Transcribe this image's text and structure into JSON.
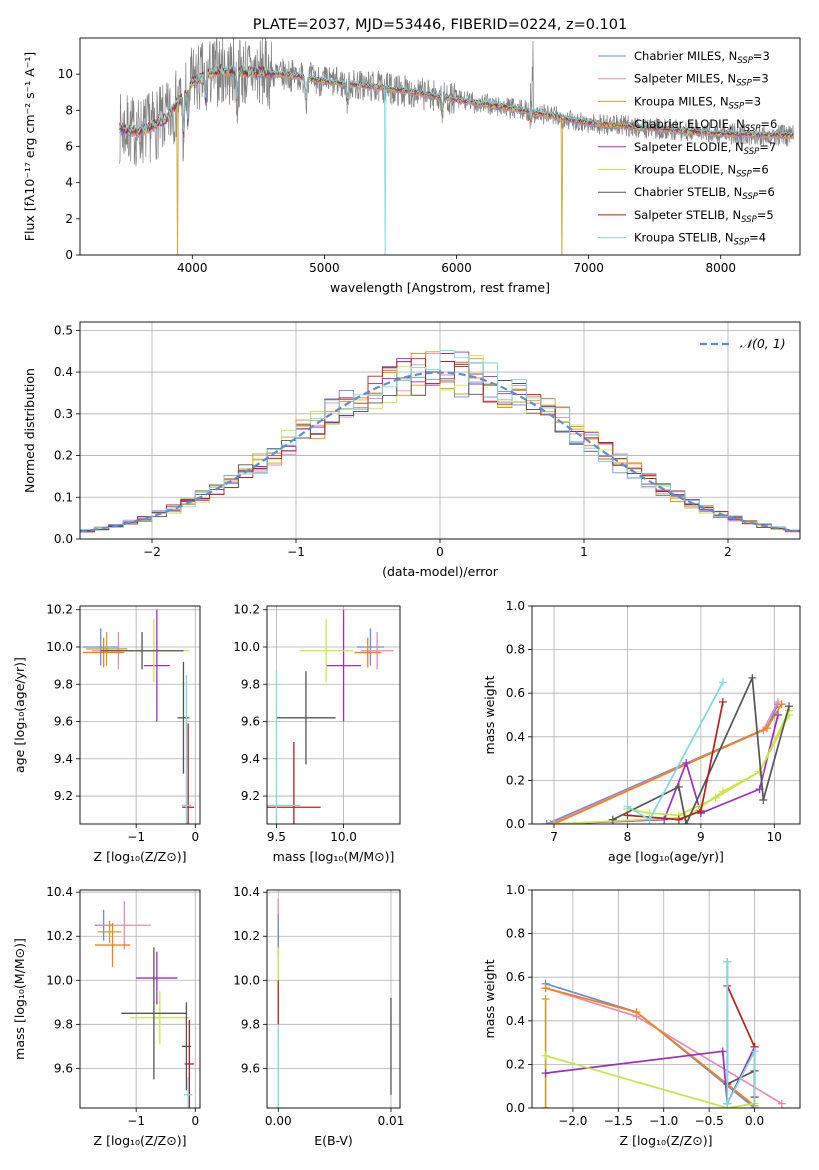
{
  "colors": {
    "chabrier_miles": "#6b8ed6",
    "salpeter_miles": "#e58bb8",
    "kroupa_miles": "#c9a227",
    "chabrier_elodie": "#ff7f0e",
    "salpeter_elodie": "#9b30c0",
    "kroupa_elodie": "#c8e64a",
    "chabrier_stelib": "#555555",
    "salpeter_stelib": "#b22222",
    "kroupa_stelib": "#80d8e0",
    "data": "#808080",
    "gaussian": "#5b8ed6",
    "grid": "#b0b0b0"
  },
  "chart_data": [
    {
      "id": "spectrum",
      "type": "line",
      "title": "PLATE=2037, MJD=53446, FIBERID=0224, z=0.101",
      "xlabel": "wavelength [Angstrom, rest frame]",
      "ylabel": "Flux [fλ10⁻¹⁷ erg cm⁻² s⁻¹ A⁻¹]",
      "xlim": [
        3150,
        8600
      ],
      "ylim": [
        0,
        12
      ],
      "xticks": [
        4000,
        5000,
        6000,
        7000,
        8000
      ],
      "yticks": [
        0,
        2,
        4,
        6,
        8,
        10
      ],
      "legend_position": "top-right",
      "series": [
        {
          "name": "Chabrier MILES, N_SSP=3",
          "sub": "SSP",
          "base": "Chabrier MILES, N",
          "num": "=3",
          "color_key": "chabrier_miles"
        },
        {
          "name": "Salpeter MILES, N_SSP=3",
          "sub": "SSP",
          "base": "Salpeter MILES, N",
          "num": "=3",
          "color_key": "salpeter_miles"
        },
        {
          "name": "Kroupa MILES, N_SSP=3",
          "sub": "SSP",
          "base": "Kroupa MILES, N",
          "num": "=3",
          "color_key": "kroupa_miles"
        },
        {
          "name": "Chabrier ELODIE, N_SSP=6",
          "sub": "SSP",
          "base": "Chabrier ELODIE, N",
          "num": "=6",
          "color_key": "chabrier_elodie"
        },
        {
          "name": "Salpeter ELODIE, N_SSP=7",
          "sub": "SSP",
          "base": "Salpeter ELODIE, N",
          "num": "=7",
          "color_key": "salpeter_elodie"
        },
        {
          "name": "Kroupa ELODIE, N_SSP=6",
          "sub": "SSP",
          "base": "Kroupa ELODIE, N",
          "num": "=6",
          "color_key": "kroupa_elodie"
        },
        {
          "name": "Chabrier STELIB, N_SSP=6",
          "sub": "SSP",
          "base": "Chabrier STELIB, N",
          "num": "=6",
          "color_key": "chabrier_stelib"
        },
        {
          "name": "Salpeter STELIB, N_SSP=5",
          "sub": "SSP",
          "base": "Salpeter STELIB, N",
          "num": "=5",
          "color_key": "salpeter_stelib"
        },
        {
          "name": "Kroupa STELIB, N_SSP=4",
          "sub": "SSP",
          "base": "Kroupa STELIB, N",
          "num": "=4",
          "color_key": "kroupa_stelib"
        }
      ],
      "continuum_points": [
        [
          3450,
          7.0
        ],
        [
          3600,
          6.8
        ],
        [
          3800,
          7.5
        ],
        [
          3950,
          9.0
        ],
        [
          4000,
          9.6
        ],
        [
          4200,
          10.2
        ],
        [
          4500,
          10.1
        ],
        [
          4800,
          9.9
        ],
        [
          5000,
          9.6
        ],
        [
          5500,
          9.2
        ],
        [
          6000,
          8.6
        ],
        [
          6500,
          8.0
        ],
        [
          7000,
          7.3
        ],
        [
          7500,
          7.0
        ],
        [
          8000,
          6.7
        ],
        [
          8500,
          6.6
        ]
      ]
    },
    {
      "id": "residuals",
      "type": "step",
      "xlabel": "(data-model)/error",
      "ylabel": "Normed distribution",
      "xlim": [
        -2.5,
        2.5
      ],
      "ylim": [
        0,
        0.52
      ],
      "xticks": [
        -2,
        -1,
        0,
        1,
        2
      ],
      "xtick_labels": [
        "−2",
        "−1",
        "0",
        "1",
        "2"
      ],
      "yticks": [
        0.0,
        0.1,
        0.2,
        0.3,
        0.4,
        0.5
      ],
      "ytick_labels": [
        "0.0",
        "0.1",
        "0.2",
        "0.3",
        "0.4",
        "0.5"
      ],
      "bin_width": 0.1,
      "reference": {
        "name": "N(0, 1)",
        "label": "𝒩(0, 1)",
        "mean": 0,
        "sigma": 1
      },
      "legend_position": "top-right"
    },
    {
      "id": "age-vs-Z",
      "type": "errorbar",
      "xlabel": "Z [log₁₀(Z/Z⊙)]",
      "ylabel": "age  [log₁₀(age/yr)]",
      "xlim": [
        -1.95,
        0.08
      ],
      "ylim": [
        9.05,
        10.22
      ],
      "xticks": [
        -1,
        0
      ],
      "xtick_labels": [
        "−1",
        "0"
      ],
      "yticks": [
        9.2,
        9.4,
        9.6,
        9.8,
        10.0,
        10.2
      ],
      "ytick_labels": [
        "9.2",
        "9.4",
        "9.6",
        "9.8",
        "10.0",
        "10.2"
      ],
      "points": [
        {
          "c": "chabrier_miles",
          "x": -1.6,
          "xe": 0.3,
          "y": 10.0,
          "ye": 0.1
        },
        {
          "c": "salpeter_miles",
          "x": -1.3,
          "xe": 0.45,
          "y": 9.98,
          "ye": 0.1
        },
        {
          "c": "kroupa_miles",
          "x": -1.5,
          "xe": 0.35,
          "y": 9.99,
          "ye": 0.09
        },
        {
          "c": "chabrier_elodie",
          "x": -1.55,
          "xe": 0.35,
          "y": 9.97,
          "ye": 0.08
        },
        {
          "c": "salpeter_elodie",
          "x": -0.65,
          "xe": 0.22,
          "y": 9.9,
          "ye": 0.3
        },
        {
          "c": "kroupa_elodie",
          "x": -0.7,
          "xe": 0.6,
          "y": 9.98,
          "ye": 0.17
        },
        {
          "c": "chabrier_stelib",
          "x": -0.9,
          "xe": 0.7,
          "y": 9.98,
          "ye": 0.1
        },
        {
          "c": "chabrier_stelib",
          "x": -0.2,
          "xe": 0.1,
          "y": 9.62,
          "ye": 0.3
        },
        {
          "c": "salpeter_stelib",
          "x": -0.12,
          "xe": 0.1,
          "y": 9.14,
          "ye": 0.45
        },
        {
          "c": "kroupa_stelib",
          "x": -0.15,
          "xe": 0.08,
          "y": 9.15,
          "ye": 0.7
        }
      ]
    },
    {
      "id": "age-vs-mass",
      "type": "errorbar",
      "xlabel": "mass [log₁₀(M/M⊙)]",
      "ylabel": "",
      "xlim": [
        9.43,
        10.42
      ],
      "ylim": [
        9.05,
        10.22
      ],
      "xticks": [
        9.5,
        10.0
      ],
      "xtick_labels": [
        "9.5",
        "10.0"
      ],
      "yticks": [
        9.2,
        9.4,
        9.6,
        9.8,
        10.0,
        10.2
      ],
      "ytick_labels": [
        "9.2",
        "9.4",
        "9.6",
        "9.8",
        "10.0",
        "10.2"
      ],
      "points": [
        {
          "c": "chabrier_miles",
          "x": 10.2,
          "xe": 0.1,
          "y": 10.0,
          "ye": 0.1
        },
        {
          "c": "salpeter_miles",
          "x": 10.25,
          "xe": 0.12,
          "y": 9.98,
          "ye": 0.1
        },
        {
          "c": "chabrier_elodie",
          "x": 10.18,
          "xe": 0.1,
          "y": 9.97,
          "ye": 0.08
        },
        {
          "c": "salpeter_elodie",
          "x": 10.0,
          "xe": 0.13,
          "y": 9.9,
          "ye": 0.3
        },
        {
          "c": "kroupa_elodie",
          "x": 9.87,
          "xe": 0.2,
          "y": 9.98,
          "ye": 0.17
        },
        {
          "c": "chabrier_stelib",
          "x": 9.72,
          "xe": 0.22,
          "y": 9.62,
          "ye": 0.25
        },
        {
          "c": "salpeter_stelib",
          "x": 9.63,
          "xe": 0.2,
          "y": 9.14,
          "ye": 0.35
        },
        {
          "c": "kroupa_stelib",
          "x": 9.5,
          "xe": 0.18,
          "y": 9.15,
          "ye": 0.72
        }
      ]
    },
    {
      "id": "massweight-vs-age",
      "type": "line",
      "xlabel": "age  [log₁₀(age/yr)]",
      "ylabel": "mass weight",
      "xlim": [
        6.7,
        10.35
      ],
      "ylim": [
        0,
        1.0
      ],
      "xticks": [
        7,
        8,
        9,
        10
      ],
      "xtick_labels": [
        "7",
        "8",
        "9",
        "10"
      ],
      "yticks": [
        0.0,
        0.2,
        0.4,
        0.6,
        0.8,
        1.0
      ],
      "ytick_labels": [
        "0.0",
        "0.2",
        "0.4",
        "0.6",
        "0.8",
        "1.0"
      ],
      "series": [
        {
          "c": "chabrier_miles",
          "x": [
            6.9,
            9.9,
            10.05
          ],
          "y": [
            0.0,
            0.44,
            0.55
          ]
        },
        {
          "c": "salpeter_miles",
          "x": [
            6.95,
            9.85,
            10.05
          ],
          "y": [
            0.0,
            0.43,
            0.56
          ]
        },
        {
          "c": "chabrier_elodie",
          "x": [
            7.0,
            9.9,
            10.1
          ],
          "y": [
            0.0,
            0.44,
            0.55
          ]
        },
        {
          "c": "salpeter_elodie",
          "x": [
            7.0,
            8.5,
            8.8,
            9.0,
            9.8,
            10.05
          ],
          "y": [
            0.0,
            0.02,
            0.28,
            0.05,
            0.16,
            0.5
          ]
        },
        {
          "c": "kroupa_elodie",
          "x": [
            7.0,
            8.8,
            9.3,
            9.8,
            10.2
          ],
          "y": [
            0.0,
            0.03,
            0.15,
            0.24,
            0.52
          ]
        },
        {
          "c": "kroupa_elodie",
          "x": [
            8.0,
            8.3,
            8.7,
            9.2,
            9.8,
            10.2
          ],
          "y": [
            0.07,
            0.05,
            0.04,
            0.12,
            0.24,
            0.5
          ]
        },
        {
          "c": "chabrier_stelib",
          "x": [
            7.8,
            8.7,
            8.8,
            9.7,
            9.85,
            10.2
          ],
          "y": [
            0.02,
            0.17,
            0.0,
            0.67,
            0.11,
            0.54
          ]
        },
        {
          "c": "salpeter_stelib",
          "x": [
            8.0,
            8.7,
            9.0,
            9.3
          ],
          "y": [
            0.04,
            0.02,
            0.06,
            0.56
          ]
        },
        {
          "c": "kroupa_stelib",
          "x": [
            8.0,
            8.3,
            9.3
          ],
          "y": [
            0.08,
            0.02,
            0.65
          ]
        }
      ]
    },
    {
      "id": "mass-vs-Z",
      "type": "errorbar",
      "xlabel": "Z [log₁₀(Z/Z⊙)]",
      "ylabel": "mass [log₁₀(M/M⊙)]",
      "xlim": [
        -1.95,
        0.08
      ],
      "ylim": [
        9.42,
        10.41
      ],
      "xticks": [
        -1,
        0
      ],
      "xtick_labels": [
        "−1",
        "0"
      ],
      "yticks": [
        9.6,
        9.8,
        10.0,
        10.2,
        10.4
      ],
      "ytick_labels": [
        "9.6",
        "9.8",
        "10.0",
        "10.2",
        "10.4"
      ],
      "points": [
        {
          "c": "chabrier_miles",
          "x": -1.55,
          "xe": 0.15,
          "y": 10.25,
          "ye": 0.07
        },
        {
          "c": "salpeter_miles",
          "x": -1.2,
          "xe": 0.45,
          "y": 10.25,
          "ye": 0.11
        },
        {
          "c": "kroupa_miles",
          "x": -1.45,
          "xe": 0.2,
          "y": 10.22,
          "ye": 0.05
        },
        {
          "c": "chabrier_elodie",
          "x": -1.4,
          "xe": 0.3,
          "y": 10.16,
          "ye": 0.1
        },
        {
          "c": "salpeter_elodie",
          "x": -0.65,
          "xe": 0.35,
          "y": 10.01,
          "ye": 0.12
        },
        {
          "c": "kroupa_elodie",
          "x": -0.6,
          "xe": 0.5,
          "y": 9.83,
          "ye": 0.12
        },
        {
          "c": "chabrier_stelib",
          "x": -0.7,
          "xe": 0.55,
          "y": 9.85,
          "ye": 0.3
        },
        {
          "c": "chabrier_stelib",
          "x": -0.15,
          "xe": 0.08,
          "y": 9.7,
          "ye": 0.2
        },
        {
          "c": "salpeter_stelib",
          "x": -0.1,
          "xe": 0.08,
          "y": 9.62,
          "ye": 0.2
        },
        {
          "c": "kroupa_stelib",
          "x": -0.12,
          "xe": 0.07,
          "y": 9.48,
          "ye": 0.08
        }
      ]
    },
    {
      "id": "mass-vs-EBV",
      "type": "errorbar",
      "xlabel": "E(B-V)",
      "ylabel": "",
      "xlim": [
        -0.001,
        0.0108
      ],
      "ylim": [
        9.42,
        10.41
      ],
      "xticks": [
        0.0,
        0.01
      ],
      "xtick_labels": [
        "0.00",
        "0.01"
      ],
      "yticks": [
        9.6,
        9.8,
        10.0,
        10.2,
        10.4
      ],
      "ytick_labels": [
        "9.6",
        "9.8",
        "10.0",
        "10.2",
        "10.4"
      ],
      "points": [
        {
          "c": "salpeter_miles",
          "x": 0.0,
          "xe": 0.0,
          "y": 10.25,
          "ye": 0.12
        },
        {
          "c": "chabrier_miles",
          "x": 0.0,
          "xe": 0.0,
          "y": 10.2,
          "ye": 0.1
        },
        {
          "c": "kroupa_elodie",
          "x": 0.0,
          "xe": 0.0,
          "y": 10.0,
          "ye": 0.15
        },
        {
          "c": "salpeter_stelib",
          "x": 0.0,
          "xe": 0.0,
          "y": 9.9,
          "ye": 0.1
        },
        {
          "c": "kroupa_stelib",
          "x": 0.0,
          "xe": 0.0,
          "y": 9.6,
          "ye": 0.18
        },
        {
          "c": "chabrier_stelib",
          "x": 0.01,
          "xe": 0.0,
          "y": 9.7,
          "ye": 0.22
        }
      ]
    },
    {
      "id": "massweight-vs-Z",
      "type": "line",
      "xlabel": "Z [log₁₀(Z/Z⊙)]",
      "ylabel": "mass weight",
      "xlim": [
        -2.45,
        0.5
      ],
      "ylim": [
        0,
        1.0
      ],
      "xticks": [
        -2.0,
        -1.5,
        -1.0,
        -0.5,
        0.0
      ],
      "xtick_labels": [
        "−2.0",
        "−1.5",
        "−1.0",
        "−0.5",
        "0.0"
      ],
      "yticks": [
        0.0,
        0.2,
        0.4,
        0.6,
        0.8,
        1.0
      ],
      "ytick_labels": [
        "0.0",
        "0.2",
        "0.4",
        "0.6",
        "0.8",
        "1.0"
      ],
      "series": [
        {
          "c": "chabrier_miles",
          "x": [
            -2.3,
            -1.3,
            0.0
          ],
          "y": [
            0.57,
            0.44,
            0.0
          ]
        },
        {
          "c": "salpeter_miles",
          "x": [
            -2.3,
            -1.3,
            0.3
          ],
          "y": [
            0.55,
            0.42,
            0.02
          ]
        },
        {
          "c": "kroupa_miles",
          "x": [
            -2.3,
            -2.3
          ],
          "y": [
            0.5,
            0.0
          ]
        },
        {
          "c": "chabrier_elodie",
          "x": [
            -2.3,
            -1.3,
            0.0
          ],
          "y": [
            0.55,
            0.44,
            0.01
          ]
        },
        {
          "c": "salpeter_elodie",
          "x": [
            -2.3,
            -0.35,
            -0.3,
            0.0
          ],
          "y": [
            0.16,
            0.26,
            0.02,
            0.28
          ]
        },
        {
          "c": "kroupa_elodie",
          "x": [
            -2.3,
            -0.3,
            0.0
          ],
          "y": [
            0.24,
            0.0,
            0.02
          ]
        },
        {
          "c": "chabrier_stelib",
          "x": [
            -0.3,
            -0.3,
            0.0,
            0.0
          ],
          "y": [
            0.67,
            0.11,
            0.17,
            0.0
          ]
        },
        {
          "c": "salpeter_stelib",
          "x": [
            -0.3,
            0.0,
            0.0
          ],
          "y": [
            0.56,
            0.28,
            0.05
          ]
        },
        {
          "c": "kroupa_stelib",
          "x": [
            -0.3,
            -0.3,
            0.0,
            0.0
          ],
          "y": [
            0.67,
            0.02,
            0.26,
            0.0
          ]
        }
      ]
    }
  ]
}
